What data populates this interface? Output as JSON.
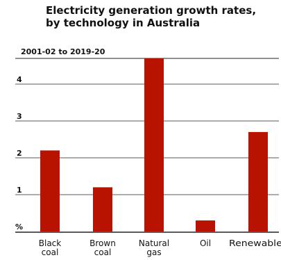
{
  "chart_data": {
    "type": "bar",
    "title_lines": [
      "Electricity generation growth rates,",
      "by technology in Australia"
    ],
    "subtitle": "2001-02 to 2019-20",
    "unit_label": "%",
    "categories": [
      {
        "line1": "Black",
        "line2": "coal"
      },
      {
        "line1": "Brown",
        "line2": "coal"
      },
      {
        "line1": "Natural",
        "line2": "gas"
      },
      {
        "line1": "Oil",
        "line2": ""
      },
      {
        "line1": "Renewables",
        "line2": ""
      }
    ],
    "values": [
      2.2,
      1.2,
      4.7,
      0.3,
      2.7
    ],
    "yticks": [
      1,
      2,
      3,
      4
    ],
    "ylim": [
      0,
      5
    ],
    "grid": true,
    "bar_color": "#b81200",
    "grid_color": "#222222"
  }
}
